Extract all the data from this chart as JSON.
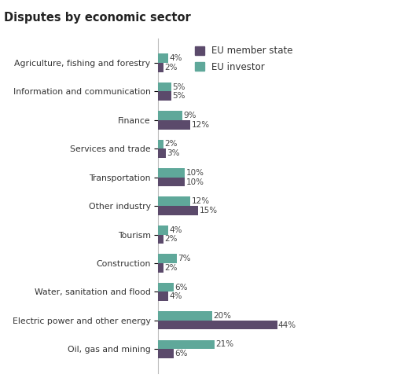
{
  "title": "Disputes by economic sector",
  "categories": [
    "Agriculture, fishing and forestry",
    "Information and communication",
    "Finance",
    "Services and trade",
    "Transportation",
    "Other industry",
    "Tourism",
    "Construction",
    "Water, sanitation and flood",
    "Electric power and other energy",
    "Oil, gas and mining"
  ],
  "eu_member_state": [
    2,
    5,
    12,
    3,
    10,
    15,
    2,
    2,
    4,
    44,
    6
  ],
  "eu_investor": [
    4,
    5,
    9,
    2,
    10,
    12,
    4,
    7,
    6,
    20,
    21
  ],
  "color_member": "#5b4a6b",
  "color_investor": "#5fa89a",
  "legend_labels": [
    "EU member state",
    "EU investor"
  ],
  "background_color": "#ffffff",
  "bar_height": 0.32,
  "title_fontsize": 10.5,
  "label_fontsize": 7.5,
  "tick_fontsize": 7.8,
  "legend_fontsize": 8.5
}
